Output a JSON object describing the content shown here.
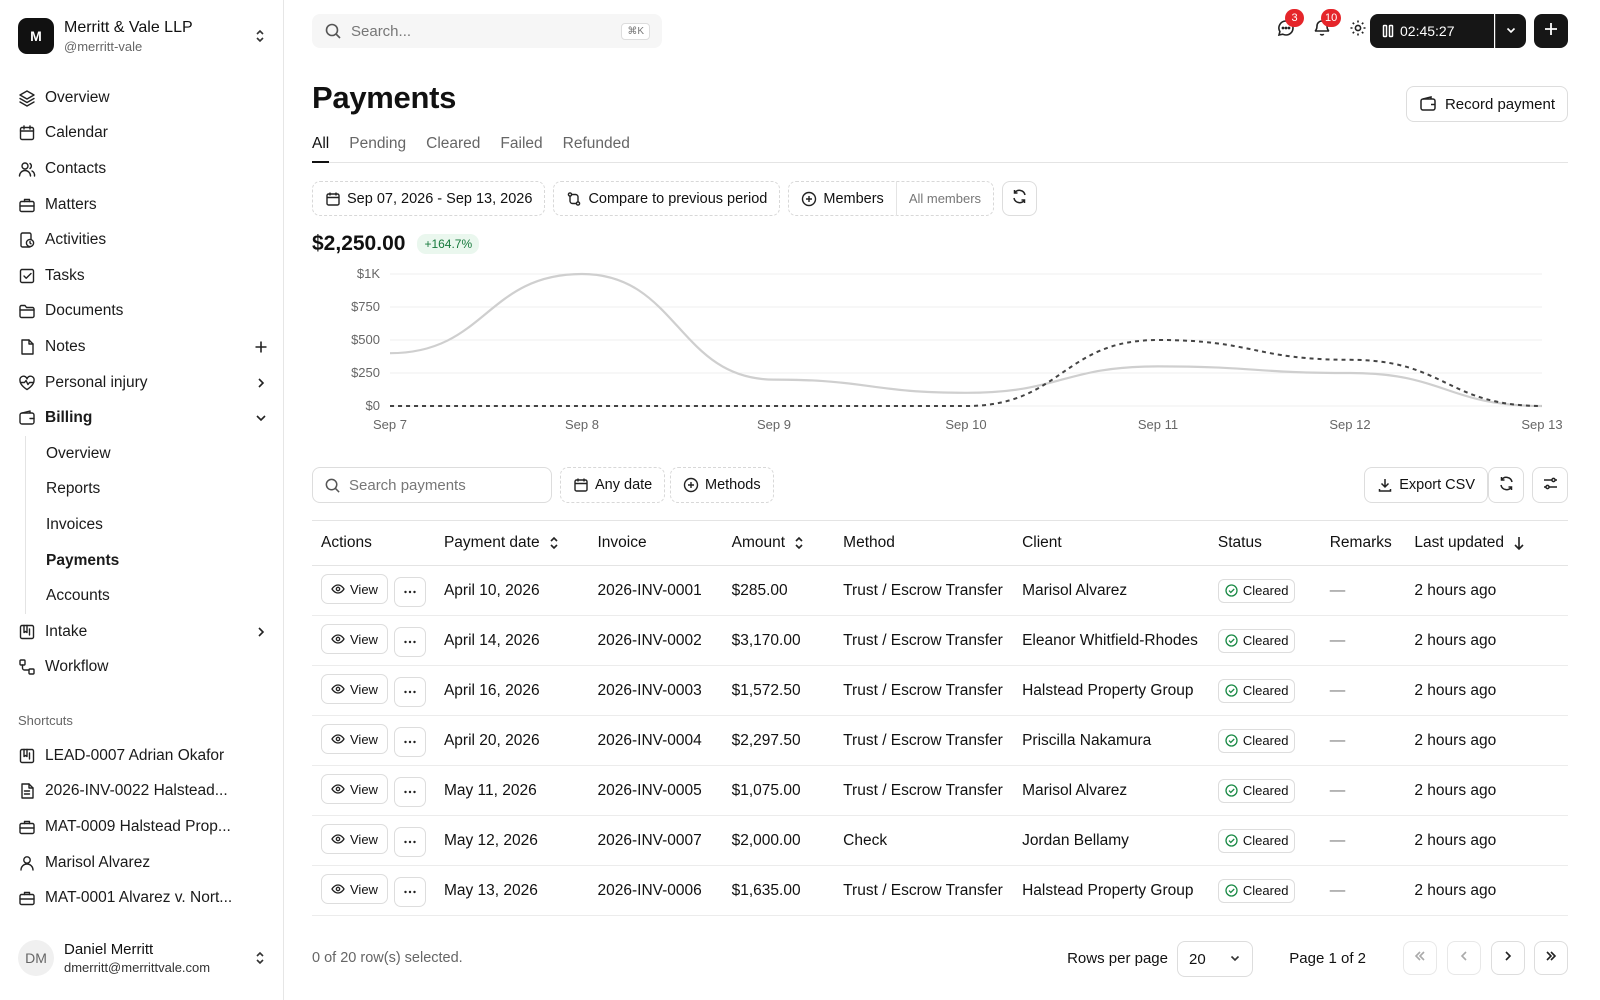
{
  "org": {
    "logo_letter": "M",
    "name": "Merritt & Vale LLP",
    "handle": "@merritt-vale"
  },
  "nav": [
    {
      "label": "Overview",
      "icon": "layers-icon"
    },
    {
      "label": "Calendar",
      "icon": "calendar-icon"
    },
    {
      "label": "Contacts",
      "icon": "users-icon"
    },
    {
      "label": "Matters",
      "icon": "briefcase-icon"
    },
    {
      "label": "Activities",
      "icon": "activity-clock-icon"
    },
    {
      "label": "Tasks",
      "icon": "checkbox-icon"
    },
    {
      "label": "Documents",
      "icon": "folder-icon"
    },
    {
      "label": "Notes",
      "icon": "note-icon"
    },
    {
      "label": "Personal injury",
      "icon": "heart-icon"
    },
    {
      "label": "Billing",
      "icon": "wallet-icon"
    }
  ],
  "billing_sub": [
    {
      "label": "Overview"
    },
    {
      "label": "Reports"
    },
    {
      "label": "Invoices"
    },
    {
      "label": "Payments"
    },
    {
      "label": "Accounts"
    }
  ],
  "nav_after": [
    {
      "label": "Intake",
      "icon": "intake-icon"
    },
    {
      "label": "Workflow",
      "icon": "workflow-icon"
    }
  ],
  "shortcuts_label": "Shortcuts",
  "shortcuts": [
    {
      "label": "LEAD-0007 Adrian Okafor",
      "icon": "intake-icon"
    },
    {
      "label": "2026-INV-0022 Halstead...",
      "icon": "file-icon"
    },
    {
      "label": "MAT-0009 Halstead Prop...",
      "icon": "briefcase-icon"
    },
    {
      "label": "Marisol Alvarez",
      "icon": "user-icon"
    },
    {
      "label": "MAT-0001 Alvarez v. Nort...",
      "icon": "briefcase-icon"
    }
  ],
  "user": {
    "initials": "DM",
    "name": "Daniel Merritt",
    "email": "dmerritt@merrittvale.com"
  },
  "topbar": {
    "search_placeholder": "Search...",
    "shortcut": "⌘K",
    "messages_count": "3",
    "notifications_count": "10",
    "timer": "02:45:27"
  },
  "page": {
    "title": "Payments",
    "record_button": "Record payment"
  },
  "tabs": [
    "All",
    "Pending",
    "Cleared",
    "Failed",
    "Refunded"
  ],
  "filters": {
    "date_range": "Sep 07, 2026 - Sep 13, 2026",
    "compare": "Compare to previous period",
    "members": "Members",
    "members_value": "All members"
  },
  "summary": {
    "total": "$2,250.00",
    "change": "+164.7%"
  },
  "chart_data": {
    "type": "line",
    "x": [
      "Sep 7",
      "Sep 8",
      "Sep 9",
      "Sep 10",
      "Sep 11",
      "Sep 12",
      "Sep 13"
    ],
    "y_ticks": [
      "$1K",
      "$750",
      "$500",
      "$250",
      "$0"
    ],
    "ylim": [
      0,
      1000
    ],
    "series": [
      {
        "style": "solid",
        "color": "#cfcfcf",
        "values": [
          400,
          1000,
          200,
          100,
          300,
          250,
          0
        ]
      },
      {
        "style": "dashed",
        "color": "#444444",
        "values": [
          0,
          0,
          0,
          0,
          500,
          350,
          0
        ]
      }
    ]
  },
  "toolbar": {
    "search_placeholder": "Search payments",
    "date_filter": "Any date",
    "methods_filter": "Methods",
    "export": "Export CSV"
  },
  "table": {
    "columns": [
      "Actions",
      "Payment date",
      "Invoice",
      "Amount",
      "Method",
      "Client",
      "Status",
      "Remarks",
      "Last updated"
    ],
    "view_label": "View",
    "rows": [
      {
        "date": "April 10, 2026",
        "invoice": "2026-INV-0001",
        "amount": "$285.00",
        "method": "Trust / Escrow Transfer",
        "client": "Marisol Alvarez",
        "status": "Cleared",
        "remarks": "—",
        "updated": "2 hours ago"
      },
      {
        "date": "April 14, 2026",
        "invoice": "2026-INV-0002",
        "amount": "$3,170.00",
        "method": "Trust / Escrow Transfer",
        "client": "Eleanor Whitfield-Rhodes",
        "status": "Cleared",
        "remarks": "—",
        "updated": "2 hours ago"
      },
      {
        "date": "April 16, 2026",
        "invoice": "2026-INV-0003",
        "amount": "$1,572.50",
        "method": "Trust / Escrow Transfer",
        "client": "Halstead Property Group",
        "status": "Cleared",
        "remarks": "—",
        "updated": "2 hours ago"
      },
      {
        "date": "April 20, 2026",
        "invoice": "2026-INV-0004",
        "amount": "$2,297.50",
        "method": "Trust / Escrow Transfer",
        "client": "Priscilla Nakamura",
        "status": "Cleared",
        "remarks": "—",
        "updated": "2 hours ago"
      },
      {
        "date": "May 11, 2026",
        "invoice": "2026-INV-0005",
        "amount": "$1,075.00",
        "method": "Trust / Escrow Transfer",
        "client": "Marisol Alvarez",
        "status": "Cleared",
        "remarks": "—",
        "updated": "2 hours ago"
      },
      {
        "date": "May 12, 2026",
        "invoice": "2026-INV-0007",
        "amount": "$2,000.00",
        "method": "Check",
        "client": "Jordan Bellamy",
        "status": "Cleared",
        "remarks": "—",
        "updated": "2 hours ago"
      },
      {
        "date": "May 13, 2026",
        "invoice": "2026-INV-0006",
        "amount": "$1,635.00",
        "method": "Trust / Escrow Transfer",
        "client": "Halstead Property Group",
        "status": "Cleared",
        "remarks": "—",
        "updated": "2 hours ago"
      }
    ]
  },
  "footer": {
    "selected": "0 of 20 row(s) selected.",
    "rows_per_page_label": "Rows per page",
    "rows_per_page": "20",
    "page_label": "Page 1 of 2"
  }
}
